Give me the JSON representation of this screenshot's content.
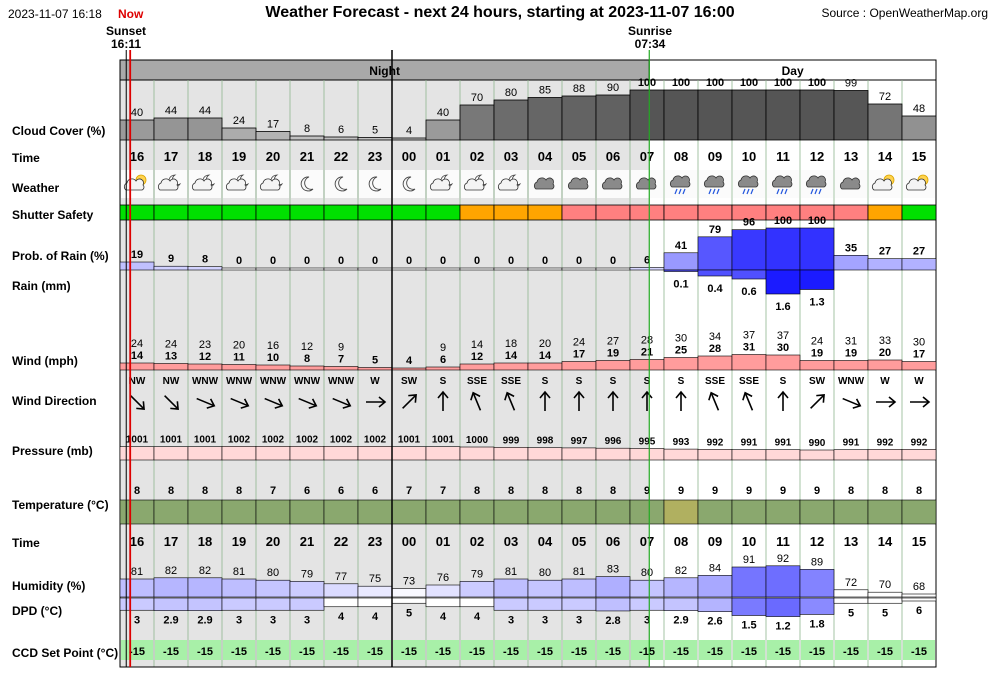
{
  "header": {
    "datetime": "2023-11-07 16:18",
    "now_label": "Now",
    "title": "Weather Forecast - next 24 hours, starting at 2023-11-07 16:00",
    "source": "Source : OpenWeatherMap.org"
  },
  "sun": {
    "sunset_label": "Sunset",
    "sunset_time": "16:11",
    "sunrise_label": "Sunrise",
    "sunrise_time": "07:34"
  },
  "periods": {
    "night": "Night",
    "day": "Day"
  },
  "row_labels": {
    "cloud": "Cloud Cover (%)",
    "time": "Time",
    "weather": "Weather",
    "shutter": "Shutter Safety",
    "rain_prob": "Prob. of Rain (%)",
    "rain": "Rain (mm)",
    "wind": "Wind (mph)",
    "wind_dir": "Wind Direction",
    "pressure": "Pressure (mb)",
    "temperature": "Temperature (°C)",
    "time2": "Time",
    "humidity": "Humidity (%)",
    "dpd": "DPD (°C)",
    "ccd": "CCD Set Point (°C)"
  },
  "hours": [
    "16",
    "17",
    "18",
    "19",
    "20",
    "21",
    "22",
    "23",
    "00",
    "01",
    "02",
    "03",
    "04",
    "05",
    "06",
    "07",
    "08",
    "09",
    "10",
    "11",
    "12",
    "13",
    "14",
    "15"
  ],
  "cloud_cover": [
    40,
    44,
    44,
    24,
    17,
    8,
    6,
    5,
    4,
    40,
    70,
    80,
    85,
    88,
    90,
    100,
    100,
    100,
    100,
    100,
    100,
    99,
    72,
    48
  ],
  "weather_icons": [
    "partly-cloudy-day-icon",
    "partly-cloudy-night-icon",
    "partly-cloudy-night-icon",
    "partly-cloudy-night-icon",
    "partly-cloudy-night-icon",
    "moon-icon",
    "moon-icon",
    "moon-icon",
    "moon-icon",
    "partly-cloudy-night-icon",
    "partly-cloudy-night-icon",
    "partly-cloudy-night-icon",
    "cloud-icon",
    "cloud-icon",
    "cloud-icon",
    "cloud-icon",
    "rain-cloud-icon",
    "rain-cloud-icon",
    "rain-cloud-icon",
    "rain-cloud-icon",
    "rain-cloud-icon",
    "cloud-icon",
    "partly-cloudy-day-icon",
    "partly-cloudy-day-icon"
  ],
  "shutter_safety": [
    "safe",
    "safe",
    "safe",
    "safe",
    "safe",
    "safe",
    "safe",
    "safe",
    "safe",
    "safe",
    "caution",
    "caution",
    "caution",
    "unsafe",
    "unsafe",
    "unsafe",
    "unsafe",
    "unsafe",
    "unsafe",
    "unsafe",
    "unsafe",
    "unsafe",
    "caution",
    "safe"
  ],
  "shutter_colors": {
    "safe": "#00e000",
    "caution": "#ffa500",
    "unsafe": "#ff8080"
  },
  "rain_probability": [
    19,
    9,
    8,
    0,
    0,
    0,
    0,
    0,
    0,
    0,
    0,
    0,
    0,
    0,
    0,
    6,
    41,
    79,
    96,
    100,
    100,
    35,
    27,
    27
  ],
  "rain_mm": [
    null,
    null,
    null,
    null,
    null,
    null,
    null,
    null,
    null,
    null,
    null,
    null,
    null,
    null,
    null,
    null,
    0.1,
    0.4,
    0.6,
    1.6,
    1.3,
    null,
    null,
    null
  ],
  "wind_gust": [
    24,
    24,
    23,
    20,
    16,
    12,
    9,
    null,
    null,
    9,
    14,
    18,
    20,
    24,
    27,
    28,
    30,
    34,
    37,
    37,
    24,
    31,
    33,
    30
  ],
  "wind_speed": [
    14,
    13,
    12,
    11,
    10,
    8,
    7,
    5,
    4,
    6,
    12,
    14,
    14,
    17,
    19,
    21,
    25,
    28,
    31,
    30,
    19,
    19,
    20,
    17
  ],
  "wind_direction": [
    "NW",
    "NW",
    "WNW",
    "WNW",
    "WNW",
    "WNW",
    "WNW",
    "W",
    "SW",
    "S",
    "SSE",
    "SSE",
    "S",
    "S",
    "S",
    "S",
    "S",
    "SSE",
    "SSE",
    "S",
    "SW",
    "WNW",
    "W",
    "W"
  ],
  "pressure": [
    1001,
    1001,
    1001,
    1002,
    1002,
    1002,
    1002,
    1002,
    1001,
    1001,
    1000,
    999,
    998,
    997,
    996,
    995,
    993,
    992,
    991,
    991,
    990,
    991,
    992,
    992
  ],
  "temperature": [
    8,
    8,
    8,
    8,
    7,
    6,
    6,
    6,
    7,
    7,
    8,
    8,
    8,
    8,
    8,
    9,
    9,
    9,
    9,
    9,
    9,
    8,
    8,
    8
  ],
  "humidity": [
    81,
    82,
    82,
    81,
    80,
    79,
    77,
    75,
    73,
    76,
    79,
    81,
    80,
    81,
    83,
    80,
    82,
    84,
    91,
    92,
    89,
    72,
    70,
    68
  ],
  "dpd": [
    3,
    2.9,
    2.9,
    3,
    3,
    3,
    4,
    4,
    5,
    4,
    4,
    3,
    3,
    3,
    2.8,
    3,
    2.9,
    2.6,
    1.5,
    1.2,
    1.8,
    5,
    5,
    6
  ],
  "ccd_set_point": [
    -15,
    -15,
    -15,
    -15,
    -15,
    -15,
    -15,
    -15,
    -15,
    -15,
    -15,
    -15,
    -15,
    -15,
    -15,
    -15,
    -15,
    -15,
    -15,
    -15,
    -15,
    -15,
    -15,
    -15
  ],
  "colors": {
    "night_bg": "#e4e4e4",
    "night_header": "#a9a9a9",
    "sunrise_line": "#22aa22",
    "now_line": "#dd0000",
    "wind_fill": "#ff9c9c",
    "pressure_fill": "#ffd8d8",
    "temp_fill": "#8aa86e",
    "temp_highlight": "#b0b060",
    "ccd_fill": "#a8f0a8",
    "rain_blue": "#5050ff"
  }
}
